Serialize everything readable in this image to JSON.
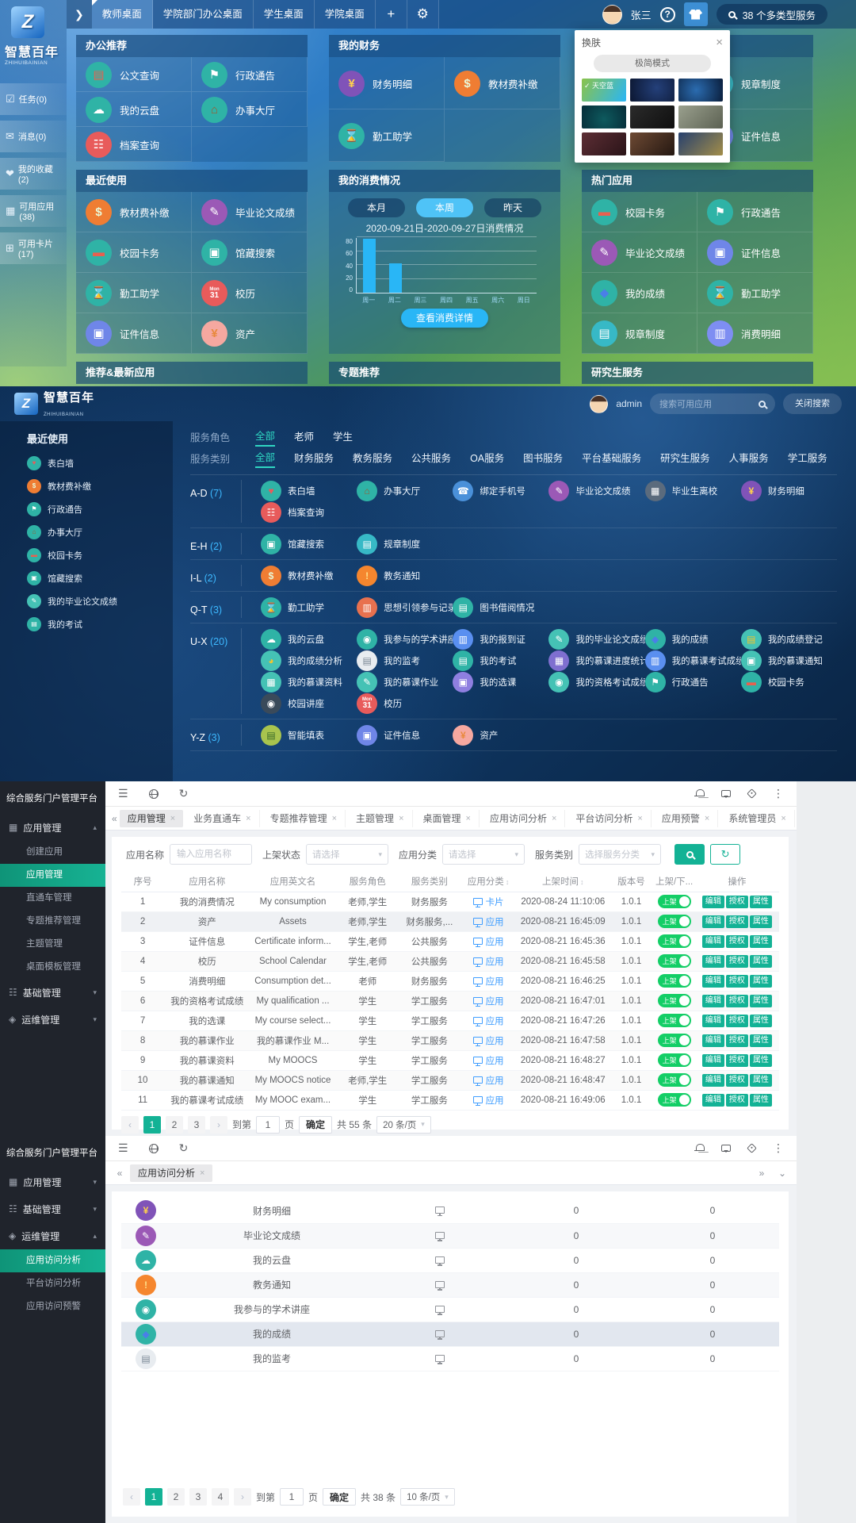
{
  "glyphs": {
    "close": "×",
    "caret_up": "▴",
    "caret_down": "▾",
    "chev_dleft": "«",
    "chev_dright": "»",
    "chev_down": "⌄",
    "sort": "↕",
    "prev": "‹",
    "next": "›",
    "hamburger": "☰",
    "refresh": "↻",
    "dots": "⋮",
    "check": "✓",
    "arrow": "❯",
    "gear": "⚙",
    "add": "+",
    "help": "?"
  },
  "colors": {
    "accent_teal": "#13b295",
    "toggle_green": "#13ce66",
    "link_blue": "#409eff",
    "bar_blue": "#29b6f6"
  },
  "app_icons": {
    "公文查询": {
      "icon": "document-wallet",
      "bg": "#2fb3a6",
      "glyph": "▤",
      "gc": "#e8604f"
    },
    "行政通告": {
      "icon": "megaphone",
      "bg": "#2fb3a6",
      "glyph": "⚑",
      "gc": "#ffffff"
    },
    "我的云盘": {
      "icon": "cloud",
      "bg": "#2fb3a6",
      "glyph": "☁",
      "gc": "#ffffff"
    },
    "办事大厅": {
      "icon": "hall",
      "bg": "#2fb3a6",
      "glyph": "⌂",
      "gc": "#9c5a2e"
    },
    "档案查询": {
      "icon": "archive",
      "bg": "#e85b5b",
      "glyph": "☷",
      "gc": "#ffffff"
    },
    "财务明细": {
      "icon": "finance-shield",
      "bg": "#8053b8",
      "glyph": "¥",
      "gc": "#ffd24d"
    },
    "教材费补缴": {
      "icon": "textbook-fee",
      "bg": "#ef7d33",
      "glyph": "$",
      "gc": "#e8f8d8"
    },
    "勤工助学": {
      "icon": "hourglass",
      "bg": "#2fb3a6",
      "glyph": "⌛",
      "gc": "#ffffff"
    },
    "规章制度": {
      "icon": "rules-clipboard",
      "bg": "#37b9c6",
      "glyph": "▤",
      "gc": "#ffffff"
    },
    "证件信息": {
      "icon": "id-card",
      "bg": "#6f86e8",
      "glyph": "▣",
      "gc": "#ffffff"
    },
    "毕业论文成绩": {
      "icon": "thesis-grade",
      "bg": "#9b59b6",
      "glyph": "✎",
      "gc": "#ffffff"
    },
    "校园卡务": {
      "icon": "campus-card",
      "bg": "#2fb3a6",
      "glyph": "▬",
      "gc": "#e8604f"
    },
    "馆藏搜索": {
      "icon": "catalog-search",
      "bg": "#2fb3a6",
      "glyph": "▣",
      "gc": "#ffffff"
    },
    "校历": {
      "icon": "calendar",
      "bg": "#e85b5b",
      "glyph": "31",
      "glyph_top": "Mon",
      "gc": "#ffffff"
    },
    "资产": {
      "icon": "assets-yen",
      "bg": "#f5a8a0",
      "glyph": "¥",
      "gc": "#e8893c"
    },
    "我的成绩": {
      "icon": "grades-diamond",
      "bg": "#2fb3a6",
      "glyph": "◆",
      "gc": "#4a7fe8"
    },
    "消费明细": {
      "icon": "consumption-detail",
      "bg": "#7e8ef2",
      "glyph": "▥",
      "gc": "#ffffff"
    },
    "表白墙": {
      "icon": "heart-wall",
      "bg": "#2fb3a6",
      "glyph": "♥",
      "gc": "#e85b5b"
    },
    "我的毕业论文成绩": {
      "icon": "my-thesis-grade",
      "bg": "#45c2b5",
      "glyph": "✎",
      "gc": "#ffffff"
    },
    "我的考试": {
      "icon": "my-exam",
      "bg": "#2fb3a6",
      "glyph": "▤",
      "gc": "#ffffff"
    },
    "绑定手机号": {
      "icon": "phone-bind",
      "bg": "#4a90d9",
      "glyph": "☎",
      "gc": "#ffffff"
    },
    "毕业生离校": {
      "icon": "graduate-leave",
      "bg": "#5b6b7d",
      "glyph": "▦",
      "gc": "#ffffff"
    },
    "教务通知": {
      "icon": "notice-bell",
      "bg": "#f5862e",
      "glyph": "!",
      "gc": "#ffe08a"
    },
    "思想引领参与记录": {
      "icon": "record-book",
      "bg": "#e8714f",
      "glyph": "▥",
      "gc": "#ffffff"
    },
    "图书借阅情况": {
      "icon": "book-borrow",
      "bg": "#2fb3a6",
      "glyph": "▤",
      "gc": "#ffffff"
    },
    "我参与的学术讲座": {
      "icon": "lecture-person",
      "bg": "#2fb3a6",
      "glyph": "◉",
      "gc": "#ffffff"
    },
    "我的报到证": {
      "icon": "report-card",
      "bg": "#5a8ff0",
      "glyph": "▥",
      "gc": "#ffffff"
    },
    "我的成绩登记": {
      "icon": "grade-register",
      "bg": "#45c2b5",
      "glyph": "▤",
      "gc": "#f0c530"
    },
    "我的成绩分析": {
      "icon": "grade-analysis",
      "bg": "#45c2b5",
      "glyph": "◕",
      "gc": "#f0c530"
    },
    "我的监考": {
      "icon": "invigilation-doc",
      "bg": "#e8ecf0",
      "glyph": "▤",
      "gc": "#7a8794"
    },
    "我的慕课进度统计": {
      "icon": "mooc-progress",
      "bg": "#7f6fd0",
      "glyph": "▦",
      "gc": "#ffffff"
    },
    "我的慕课考试成绩": {
      "icon": "mooc-exam",
      "bg": "#5a8ff0",
      "glyph": "▥",
      "gc": "#ffffff"
    },
    "我的慕课通知": {
      "icon": "mooc-notice",
      "bg": "#45c2b5",
      "glyph": "▣",
      "gc": "#ffffff"
    },
    "我的慕课资料": {
      "icon": "mooc-material",
      "bg": "#45c2b5",
      "glyph": "▦",
      "gc": "#ffffff"
    },
    "我的慕课作业": {
      "icon": "mooc-homework",
      "bg": "#45c2b5",
      "glyph": "✎",
      "gc": "#ffffff"
    },
    "我的选课": {
      "icon": "course-select",
      "bg": "#8f7fe0",
      "glyph": "▣",
      "gc": "#ffffff"
    },
    "我的资格考试成绩": {
      "icon": "qualification-exam",
      "bg": "#45c2b5",
      "glyph": "◉",
      "gc": "#ffffff"
    },
    "校园讲座": {
      "icon": "campus-lecture",
      "bg": "#3a4a5a",
      "glyph": "◉",
      "gc": "#ffffff"
    },
    "智能填表": {
      "icon": "smart-form",
      "bg": "#a8c44e",
      "glyph": "▤",
      "gc": "#3a6b2a"
    }
  },
  "desktop": {
    "logo": {
      "title": "智慧百年",
      "subtitle": "ZHIHUIBAINIAN",
      "mark": "Z"
    },
    "topbar": {
      "tabs": [
        "教师桌面",
        "学院部门办公桌面",
        "学生桌面",
        "学院桌面"
      ],
      "active_tab": "教师桌面",
      "user_name": "张三",
      "search_text": "38 个多类型服务"
    },
    "sidebar": [
      {
        "icon": "tasks",
        "glyph": "☑",
        "label": "任务(0)"
      },
      {
        "icon": "messages",
        "glyph": "✉",
        "label": "消息(0)"
      },
      {
        "icon": "favorites",
        "glyph": "❤",
        "label": "我的收藏(2)"
      },
      {
        "icon": "available-apps",
        "glyph": "▦",
        "label": "可用应用(38)"
      },
      {
        "icon": "available-cards",
        "glyph": "⊞",
        "label": "可用卡片(17)"
      }
    ],
    "panels": {
      "office": {
        "title": "办公推荐",
        "tiles": [
          "公文查询",
          "行政通告",
          "我的云盘",
          "办事大厅",
          "档案查询"
        ]
      },
      "finance": {
        "title": "我的财务",
        "tiles": [
          "财务明细",
          "教材费补缴",
          "勤工助学"
        ]
      },
      "library": {
        "tiles": [
          "规章制度",
          "证件信息"
        ]
      },
      "recent": {
        "title": "最近使用",
        "tiles": [
          "教材费补缴",
          "毕业论文成绩",
          "校园卡务",
          "馆藏搜索",
          "勤工助学",
          "校历",
          "证件信息",
          "资产"
        ]
      },
      "consumption": {
        "title": "我的消费情况",
        "tabs": [
          "本月",
          "本周",
          "昨天"
        ],
        "active_tab": "本周",
        "detail_button": "查看消费详情"
      },
      "hot": {
        "title": "热门应用",
        "tiles": [
          "校园卡务",
          "行政通告",
          "毕业论文成绩",
          "证件信息",
          "我的成绩",
          "勤工助学",
          "规章制度",
          "消费明细"
        ]
      },
      "bottom_panels": [
        "推荐&最新应用",
        "专题推荐",
        "研究生服务"
      ]
    },
    "skin_popup": {
      "title": "换肤",
      "mode_button": "极简模式",
      "selected_theme": "天空蓝",
      "theme_count": 9
    }
  },
  "chart_data": {
    "type": "bar",
    "title": "2020-09-21日-2020-09-27日消费情况",
    "x": [
      "周一",
      "周二",
      "周三",
      "周四",
      "周五",
      "周六",
      "周日"
    ],
    "values": [
      78,
      42,
      0,
      0,
      0,
      0,
      0
    ],
    "yticks": [
      0,
      20,
      40,
      60,
      80
    ],
    "ylim": [
      0,
      80
    ],
    "bar_color": "#29b6f6",
    "legend_position": "none",
    "grid": true
  },
  "applist": {
    "logo": {
      "title": "智慧百年",
      "subtitle": "ZHIHUIBAINIAN",
      "mark": "Z"
    },
    "user": "admin",
    "search_placeholder": "搜索可用应用",
    "close_search": "关闭搜索",
    "recent": {
      "title": "最近使用",
      "items": [
        "表白墙",
        "教材费补缴",
        "行政通告",
        "办事大厅",
        "校园卡务",
        "馆藏搜索",
        "我的毕业论文成绩",
        "我的考试"
      ]
    },
    "role_filter": {
      "label": "服务角色",
      "options": [
        "全部",
        "老师",
        "学生"
      ],
      "active": "全部"
    },
    "type_filter": {
      "label": "服务类别",
      "options": [
        "全部",
        "财务服务",
        "教务服务",
        "公共服务",
        "OA服务",
        "图书服务",
        "平台基础服务",
        "研究生服务",
        "人事服务",
        "学工服务"
      ],
      "active": "全部"
    },
    "groups": [
      {
        "letter": "A-D",
        "count": "(7)",
        "tiles": [
          "表白墙",
          "办事大厅",
          "绑定手机号",
          "毕业论文成绩",
          "毕业生离校",
          "财务明细",
          "档案查询"
        ]
      },
      {
        "letter": "E-H",
        "count": "(2)",
        "tiles": [
          "馆藏搜索",
          "规章制度"
        ]
      },
      {
        "letter": "I-L",
        "count": "(2)",
        "tiles": [
          "教材费补缴",
          "教务通知"
        ]
      },
      {
        "letter": "Q-T",
        "count": "(3)",
        "tiles": [
          "勤工助学",
          "思想引领参与记录",
          "图书借阅情况"
        ]
      },
      {
        "letter": "U-X",
        "count": "(20)",
        "tiles": [
          "我的云盘",
          "我参与的学术讲座",
          "我的报到证",
          "我的毕业论文成绩",
          "我的成绩",
          "我的成绩登记",
          "我的成绩分析",
          "我的监考",
          "我的考试",
          "我的慕课进度统计",
          "我的慕课考试成绩",
          "我的慕课通知",
          "我的慕课资料",
          "我的慕课作业",
          "我的选课",
          "我的资格考试成绩",
          "行政通告",
          "校园卡务",
          "校园讲座",
          "校历"
        ]
      },
      {
        "letter": "Y-Z",
        "count": "(3)",
        "tiles": [
          "智能填表",
          "证件信息",
          "资产"
        ]
      }
    ]
  },
  "admin_app": {
    "sidebar_title": "综合服务门户管理平台",
    "menu": [
      {
        "label": "应用管理",
        "icon": "apps",
        "glyph": "▦",
        "expanded": true,
        "active_child": "应用管理",
        "children": [
          "创建应用",
          "应用管理",
          "直通车管理",
          "专题推荐管理",
          "主题管理",
          "桌面模板管理"
        ]
      },
      {
        "label": "基础管理",
        "icon": "base-settings",
        "glyph": "☷",
        "expanded": false,
        "children": []
      },
      {
        "label": "运维管理",
        "icon": "operations",
        "glyph": "◈",
        "expanded": false,
        "children": []
      }
    ],
    "tabs": [
      "应用管理",
      "业务直通车",
      "专题推荐管理",
      "主题管理",
      "桌面管理",
      "应用访问分析",
      "平台访问分析",
      "应用预警",
      "系统管理员"
    ],
    "active_tab": "应用管理",
    "filters": [
      {
        "label": "应用名称",
        "placeholder": "输入应用名称",
        "type": "input"
      },
      {
        "label": "上架状态",
        "placeholder": "请选择",
        "type": "select"
      },
      {
        "label": "应用分类",
        "placeholder": "请选择",
        "type": "select"
      },
      {
        "label": "服务类别",
        "placeholder": "选择服务分类",
        "type": "select"
      }
    ],
    "table": {
      "headers": [
        "序号",
        "应用名称",
        "应用英文名",
        "服务角色",
        "服务类别",
        "应用分类",
        "上架时间",
        "版本号",
        "上架/下...",
        "操作"
      ],
      "sortable": [
        "应用分类",
        "上架时间"
      ],
      "toggle_label": "上架",
      "actions": [
        "编辑",
        "授权",
        "属性"
      ],
      "rows": [
        [
          "1",
          "我的消费情况",
          "My consumption",
          "老师,学生",
          "财务服务",
          "卡片",
          "2020-08-24 11:10:06",
          "1.0.1"
        ],
        [
          "2",
          "资产",
          "Assets",
          "老师,学生",
          "财务服务,...",
          "应用",
          "2020-08-21 16:45:09",
          "1.0.1"
        ],
        [
          "3",
          "证件信息",
          "Certificate inform...",
          "学生,老师",
          "公共服务",
          "应用",
          "2020-08-21 16:45:36",
          "1.0.1"
        ],
        [
          "4",
          "校历",
          "School Calendar",
          "学生,老师",
          "公共服务",
          "应用",
          "2020-08-21 16:45:58",
          "1.0.1"
        ],
        [
          "5",
          "消费明细",
          "Consumption det...",
          "老师",
          "财务服务",
          "应用",
          "2020-08-21 16:46:25",
          "1.0.1"
        ],
        [
          "6",
          "我的资格考试成绩",
          "My qualification ...",
          "学生",
          "学工服务",
          "应用",
          "2020-08-21 16:47:01",
          "1.0.1"
        ],
        [
          "7",
          "我的选课",
          "My course select...",
          "学生",
          "学工服务",
          "应用",
          "2020-08-21 16:47:26",
          "1.0.1"
        ],
        [
          "8",
          "我的慕课作业",
          "我的慕课作业 M...",
          "学生",
          "学工服务",
          "应用",
          "2020-08-21 16:47:58",
          "1.0.1"
        ],
        [
          "9",
          "我的慕课资料",
          "My MOOCS",
          "学生",
          "学工服务",
          "应用",
          "2020-08-21 16:48:27",
          "1.0.1"
        ],
        [
          "10",
          "我的慕课通知",
          "My MOOCS notice",
          "老师,学生",
          "学工服务",
          "应用",
          "2020-08-21 16:48:47",
          "1.0.1"
        ],
        [
          "11",
          "我的慕课考试成绩",
          "My MOOC exam...",
          "学生",
          "学工服务",
          "应用",
          "2020-08-21 16:49:06",
          "1.0.1"
        ]
      ],
      "selected_row_index": 1
    },
    "pagination": {
      "pages": [
        "1",
        "2",
        "3"
      ],
      "active": "1",
      "jump_label": "到第",
      "page_value": "1",
      "page_unit": "页",
      "confirm": "确定",
      "total": "共 55 条",
      "page_size": "20 条/页"
    }
  },
  "admin_analysis": {
    "sidebar_title": "综合服务门户管理平台",
    "menu": [
      {
        "label": "应用管理",
        "icon": "apps",
        "glyph": "▦",
        "expanded": false,
        "children": []
      },
      {
        "label": "基础管理",
        "icon": "base-settings",
        "glyph": "☷",
        "expanded": false,
        "children": []
      },
      {
        "label": "运维管理",
        "icon": "operations",
        "glyph": "◈",
        "expanded": true,
        "active_child": "应用访问分析",
        "children": [
          "应用访问分析",
          "平台访问分析",
          "应用访问预警"
        ]
      }
    ],
    "tabs": [
      "应用访问分析"
    ],
    "active_tab": "应用访问分析",
    "rows": [
      {
        "name": "财务明细",
        "v1": "0",
        "v2": "0",
        "selected": false
      },
      {
        "name": "毕业论文成绩",
        "v1": "0",
        "v2": "0",
        "selected": false
      },
      {
        "name": "我的云盘",
        "v1": "0",
        "v2": "0",
        "selected": false
      },
      {
        "name": "教务通知",
        "v1": "0",
        "v2": "0",
        "selected": false
      },
      {
        "name": "我参与的学术讲座",
        "v1": "0",
        "v2": "0",
        "selected": false
      },
      {
        "name": "我的成绩",
        "v1": "0",
        "v2": "0",
        "selected": true
      },
      {
        "name": "我的监考",
        "v1": "0",
        "v2": "0",
        "selected": false
      }
    ],
    "pagination": {
      "pages": [
        "1",
        "2",
        "3",
        "4"
      ],
      "active": "1",
      "jump_label": "到第",
      "page_value": "1",
      "page_unit": "页",
      "confirm": "确定",
      "total": "共 38 条",
      "page_size": "10 条/页"
    }
  }
}
